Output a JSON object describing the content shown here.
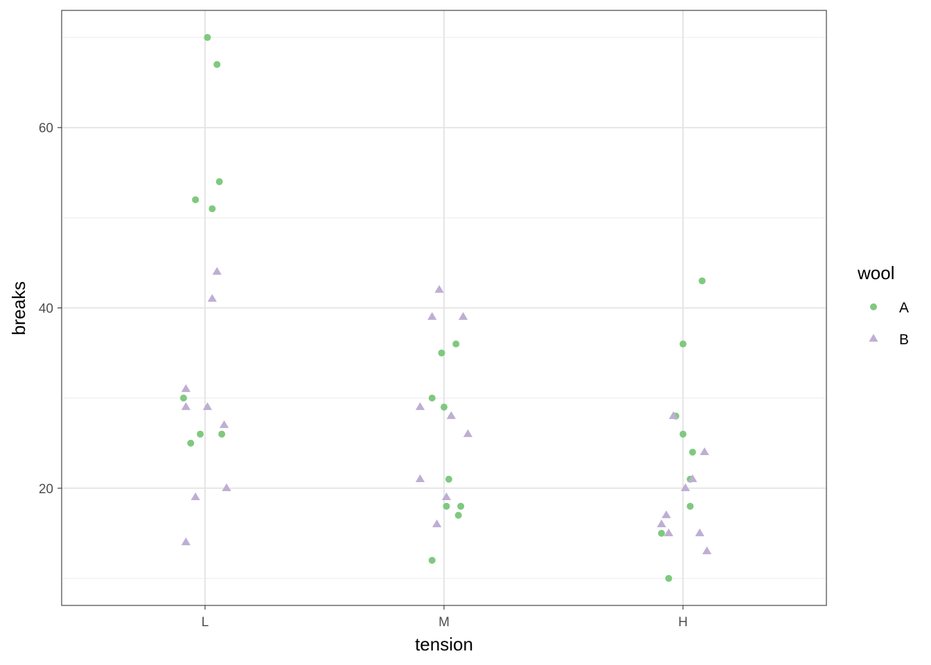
{
  "chart_data": {
    "type": "scatter",
    "xlabel": "tension",
    "ylabel": "breaks",
    "x_categories": [
      "L",
      "M",
      "H"
    ],
    "xlim": [
      0.4,
      3.6
    ],
    "ylim": [
      7,
      73
    ],
    "y_ticks": [
      20,
      40,
      60
    ],
    "y_minor_ticks": [
      10,
      30,
      50,
      70
    ],
    "grid": true,
    "legend": {
      "title": "wool",
      "placement": "right",
      "entries": [
        {
          "label": "A",
          "shape": "circle",
          "color": "#7FC97F"
        },
        {
          "label": "B",
          "shape": "triangle",
          "color": "#BEAED4"
        }
      ]
    },
    "series": [
      {
        "name": "A",
        "shape": "circle",
        "color": "#7FC97F",
        "points": [
          [
            1.01,
            70
          ],
          [
            1.05,
            67
          ],
          [
            1.06,
            54
          ],
          [
            0.96,
            52
          ],
          [
            1.03,
            51
          ],
          [
            0.91,
            30
          ],
          [
            0.98,
            26
          ],
          [
            1.07,
            26
          ],
          [
            0.94,
            25
          ],
          [
            2.05,
            36
          ],
          [
            1.99,
            35
          ],
          [
            1.95,
            30
          ],
          [
            2.0,
            29
          ],
          [
            2.02,
            21
          ],
          [
            2.01,
            18
          ],
          [
            2.07,
            18
          ],
          [
            2.06,
            17
          ],
          [
            1.95,
            12
          ],
          [
            3.08,
            43
          ],
          [
            3.0,
            36
          ],
          [
            2.97,
            28
          ],
          [
            3.0,
            26
          ],
          [
            3.04,
            24
          ],
          [
            3.03,
            21
          ],
          [
            3.03,
            18
          ],
          [
            2.91,
            15
          ],
          [
            2.94,
            10
          ]
        ]
      },
      {
        "name": "B",
        "shape": "triangle",
        "color": "#BEAED4",
        "points": [
          [
            1.05,
            44
          ],
          [
            1.03,
            41
          ],
          [
            0.92,
            31
          ],
          [
            0.92,
            29
          ],
          [
            1.01,
            29
          ],
          [
            1.08,
            27
          ],
          [
            1.09,
            20
          ],
          [
            0.96,
            19
          ],
          [
            0.92,
            14
          ],
          [
            1.98,
            42
          ],
          [
            1.95,
            39
          ],
          [
            2.08,
            39
          ],
          [
            1.9,
            29
          ],
          [
            2.03,
            28
          ],
          [
            2.1,
            26
          ],
          [
            1.9,
            21
          ],
          [
            2.01,
            19
          ],
          [
            1.97,
            16
          ],
          [
            2.96,
            28
          ],
          [
            3.09,
            24
          ],
          [
            3.04,
            21
          ],
          [
            3.01,
            20
          ],
          [
            2.93,
            17
          ],
          [
            2.91,
            16
          ],
          [
            2.94,
            15
          ],
          [
            3.07,
            15
          ],
          [
            3.1,
            13
          ]
        ]
      }
    ]
  }
}
